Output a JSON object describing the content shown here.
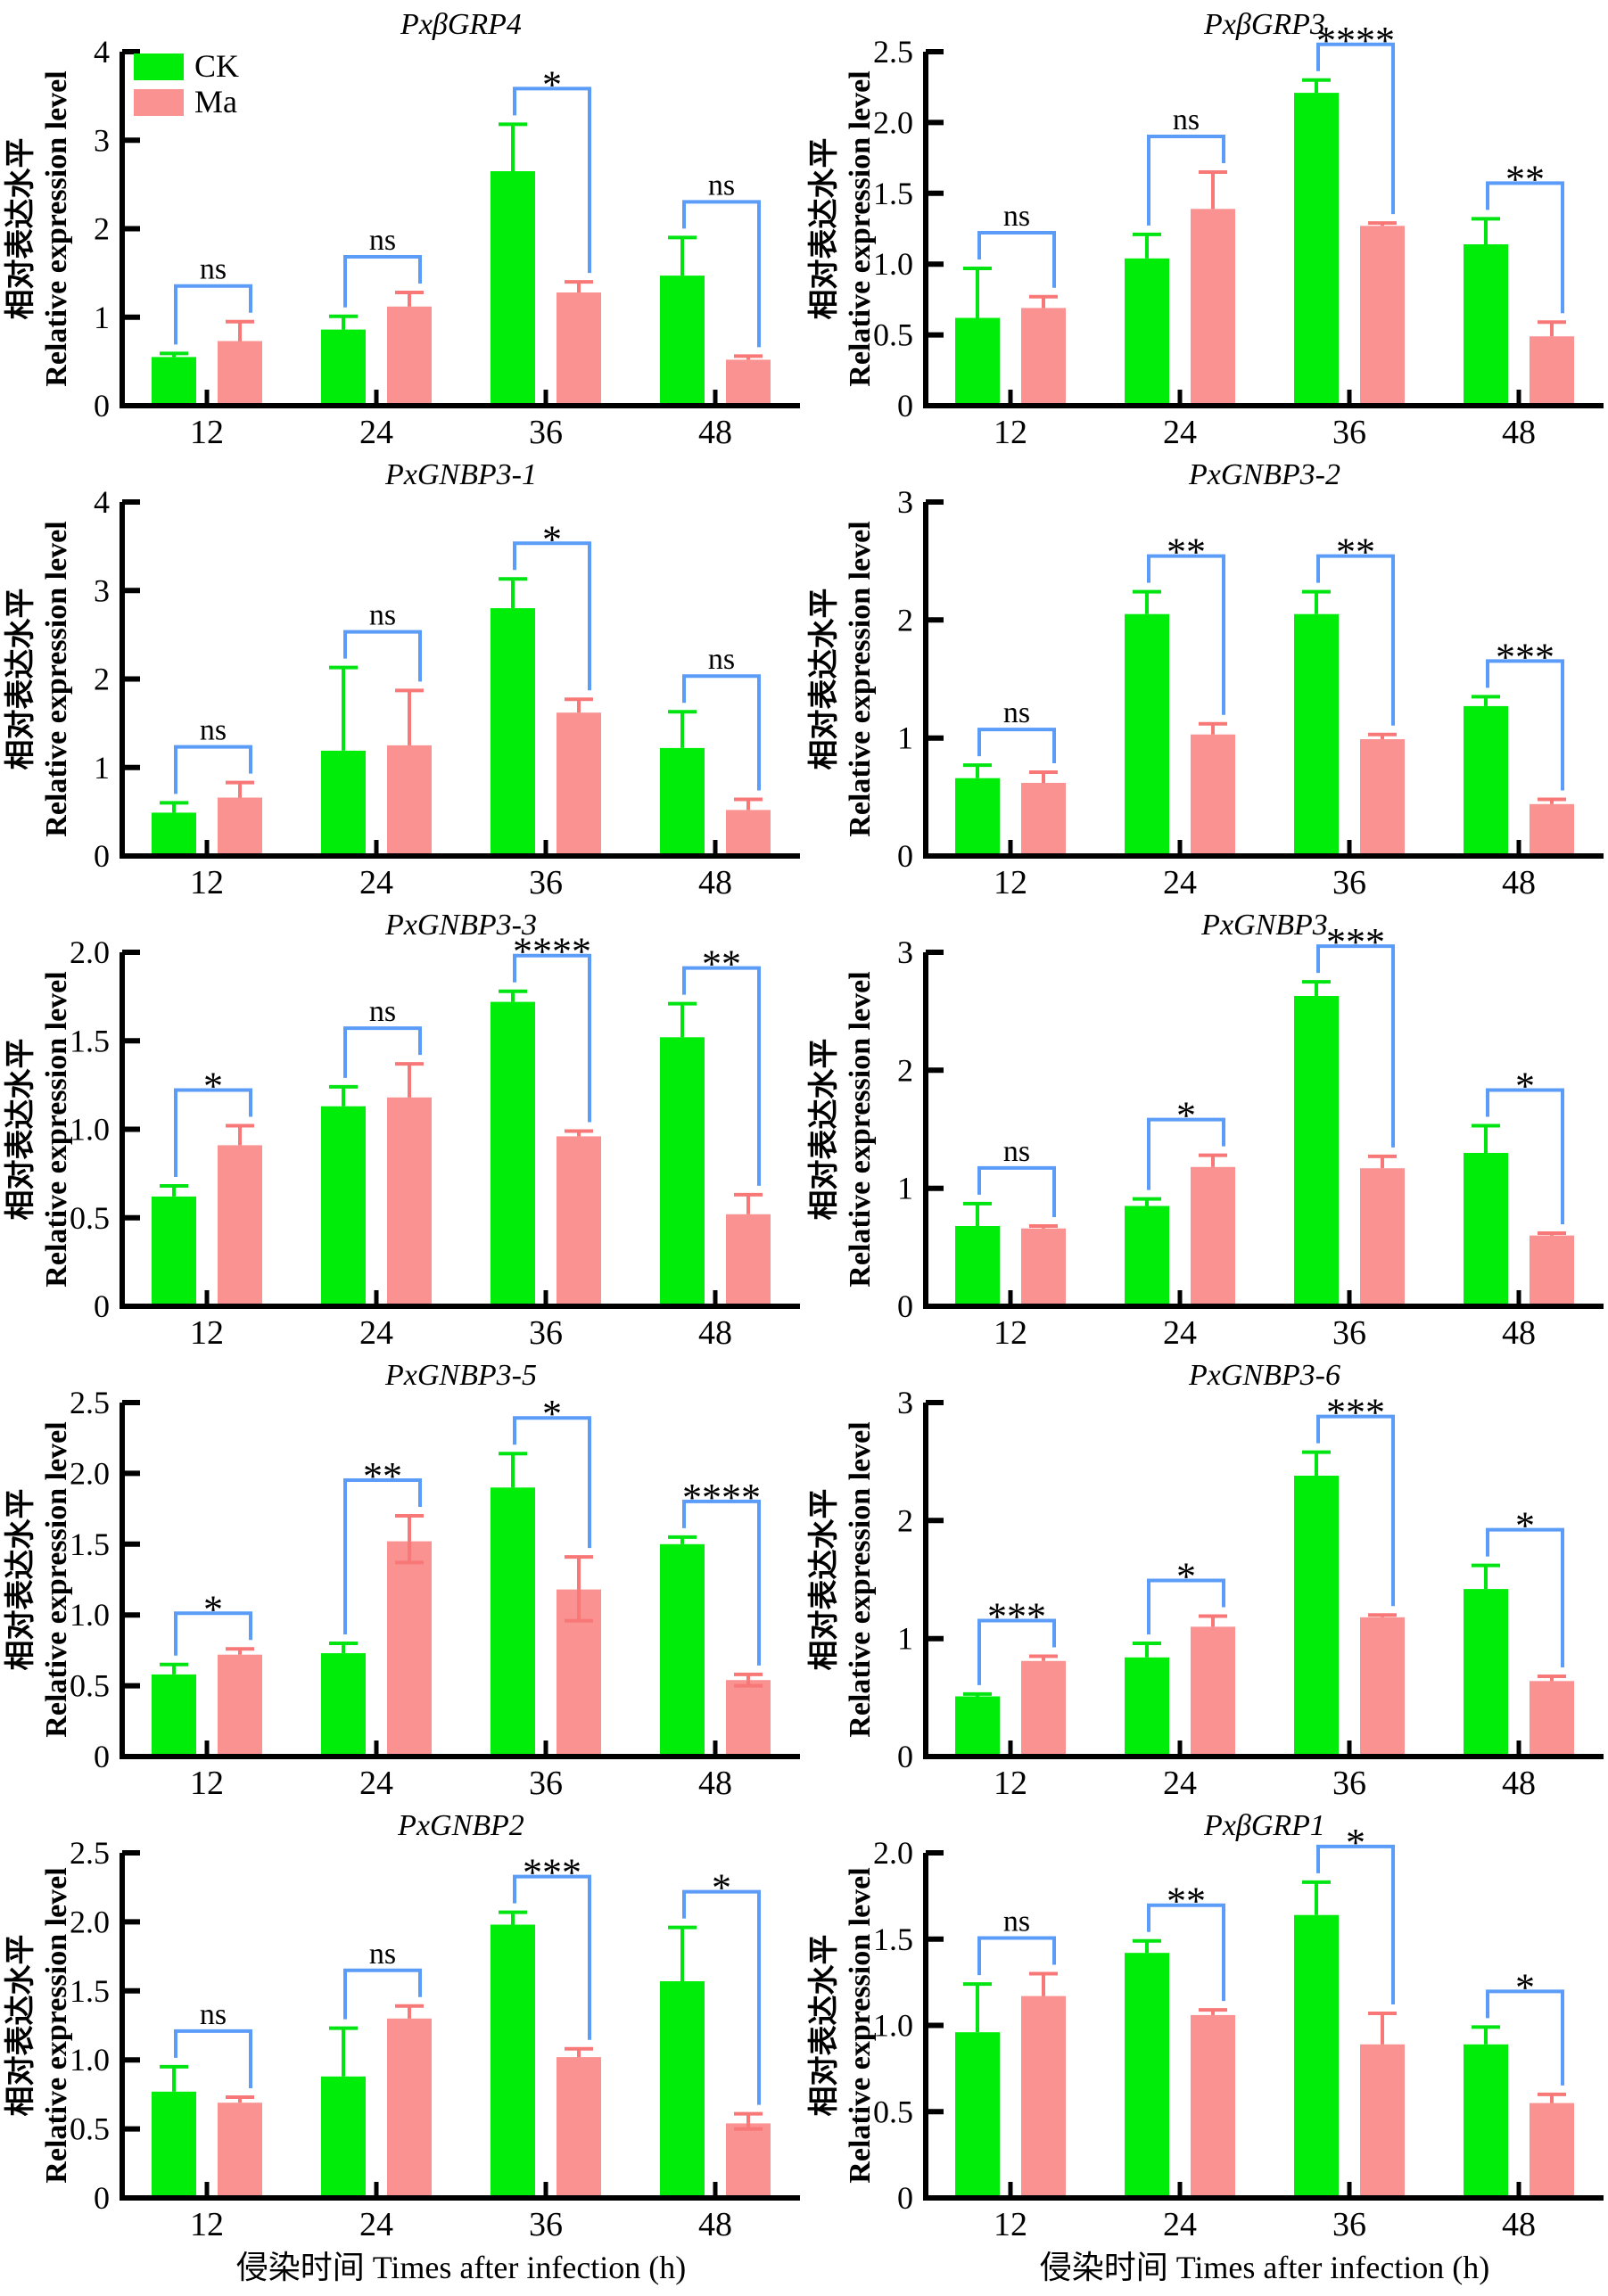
{
  "figure": {
    "xlabel": "侵染时间 Times after infection (h)",
    "ylabel_line1": "相对表达水平",
    "ylabel_line2": "Relative expression level",
    "categories": [
      "12",
      "24",
      "36",
      "48"
    ],
    "legend": {
      "items": [
        {
          "label": "CK",
          "color": "#00ED0A"
        },
        {
          "label": "Ma",
          "color": "#FA9292"
        }
      ],
      "position": "top-left-first-chart"
    },
    "colors": {
      "ck_bar": "#00ED0A",
      "ck_error": "#00E511",
      "ma_bar": "#FA9292",
      "ma_error": "#F87878",
      "bracket": "#5B9CF8",
      "axis": "#000000",
      "text": "#000000"
    }
  },
  "chart_data": [
    {
      "type": "bar",
      "title": "PxβGRP4",
      "ylim": [
        0,
        4
      ],
      "yticks": [
        "0",
        "1",
        "2",
        "3",
        "4"
      ],
      "categories": [
        "12",
        "24",
        "36",
        "48"
      ],
      "significance": [
        "ns",
        "ns",
        "*",
        "ns"
      ],
      "show_legend": true,
      "show_xlabel": false,
      "series": [
        {
          "name": "CK",
          "values": [
            0.55,
            0.86,
            2.65,
            1.47
          ],
          "errors": [
            0.04,
            0.15,
            0.53,
            0.43
          ]
        },
        {
          "name": "Ma",
          "values": [
            0.73,
            1.12,
            1.28,
            0.52
          ],
          "errors": [
            0.22,
            0.16,
            0.12,
            0.04
          ]
        }
      ]
    },
    {
      "type": "bar",
      "title": "PxβGRP3",
      "ylim": [
        0,
        2.5
      ],
      "yticks": [
        "0",
        "0.5",
        "1.0",
        "1.5",
        "2.0",
        "2.5"
      ],
      "categories": [
        "12",
        "24",
        "36",
        "48"
      ],
      "significance": [
        "ns",
        "ns",
        "****",
        "**"
      ],
      "show_legend": false,
      "show_xlabel": false,
      "series": [
        {
          "name": "CK",
          "values": [
            0.62,
            1.04,
            2.21,
            1.14
          ],
          "errors": [
            0.35,
            0.17,
            0.09,
            0.18
          ]
        },
        {
          "name": "Ma",
          "values": [
            0.69,
            1.39,
            1.27,
            0.49
          ],
          "errors": [
            0.08,
            0.26,
            0.02,
            0.1
          ]
        }
      ]
    },
    {
      "type": "bar",
      "title": "PxGNBP3-1",
      "ylim": [
        0,
        4
      ],
      "yticks": [
        "0",
        "1",
        "2",
        "3",
        "4"
      ],
      "categories": [
        "12",
        "24",
        "36",
        "48"
      ],
      "significance": [
        "ns",
        "ns",
        "*",
        "ns"
      ],
      "show_legend": false,
      "show_xlabel": false,
      "series": [
        {
          "name": "CK",
          "values": [
            0.49,
            1.19,
            2.8,
            1.22
          ],
          "errors": [
            0.11,
            0.94,
            0.33,
            0.41
          ]
        },
        {
          "name": "Ma",
          "values": [
            0.66,
            1.25,
            1.62,
            0.52
          ],
          "errors": [
            0.17,
            0.62,
            0.15,
            0.12
          ]
        }
      ]
    },
    {
      "type": "bar",
      "title": "PxGNBP3-2",
      "ylim": [
        0,
        3
      ],
      "yticks": [
        "0",
        "1",
        "2",
        "3"
      ],
      "categories": [
        "12",
        "24",
        "36",
        "48"
      ],
      "significance": [
        "ns",
        "**",
        "**",
        "***"
      ],
      "show_legend": false,
      "show_xlabel": false,
      "series": [
        {
          "name": "CK",
          "values": [
            0.66,
            2.05,
            2.05,
            1.27
          ],
          "errors": [
            0.11,
            0.19,
            0.19,
            0.08
          ]
        },
        {
          "name": "Ma",
          "values": [
            0.62,
            1.03,
            0.99,
            0.44
          ],
          "errors": [
            0.09,
            0.09,
            0.04,
            0.04
          ]
        }
      ]
    },
    {
      "type": "bar",
      "title": "PxGNBP3-3",
      "ylim": [
        0,
        2.0
      ],
      "yticks": [
        "0",
        "0.5",
        "1.0",
        "1.5",
        "2.0"
      ],
      "categories": [
        "12",
        "24",
        "36",
        "48"
      ],
      "significance": [
        "*",
        "ns",
        "****",
        "**"
      ],
      "show_legend": false,
      "show_xlabel": false,
      "series": [
        {
          "name": "CK",
          "values": [
            0.62,
            1.13,
            1.72,
            1.52
          ],
          "errors": [
            0.06,
            0.11,
            0.06,
            0.19
          ]
        },
        {
          "name": "Ma",
          "values": [
            0.91,
            1.18,
            0.96,
            0.52
          ],
          "errors": [
            0.11,
            0.19,
            0.03,
            0.11
          ]
        }
      ]
    },
    {
      "type": "bar",
      "title": "PxGNBP3",
      "ylim": [
        0,
        3
      ],
      "yticks": [
        "0",
        "1",
        "2",
        "3"
      ],
      "categories": [
        "12",
        "24",
        "36",
        "48"
      ],
      "significance": [
        "ns",
        "*",
        "***",
        "*"
      ],
      "show_legend": false,
      "show_xlabel": false,
      "series": [
        {
          "name": "CK",
          "values": [
            0.68,
            0.85,
            2.63,
            1.3
          ],
          "errors": [
            0.19,
            0.06,
            0.12,
            0.23
          ]
        },
        {
          "name": "Ma",
          "values": [
            0.66,
            1.18,
            1.17,
            0.6
          ],
          "errors": [
            0.02,
            0.1,
            0.1,
            0.02
          ]
        }
      ]
    },
    {
      "type": "bar",
      "title": "PxGNBP3-5",
      "ylim": [
        0,
        2.5
      ],
      "yticks": [
        "0",
        "0.5",
        "1.0",
        "1.5",
        "2.0",
        "2.5"
      ],
      "categories": [
        "12",
        "24",
        "36",
        "48"
      ],
      "significance": [
        "*",
        "**",
        "*",
        "****"
      ],
      "show_legend": false,
      "show_xlabel": false,
      "series": [
        {
          "name": "CK",
          "values": [
            0.58,
            0.73,
            1.9,
            1.5
          ],
          "errors": [
            0.07,
            0.07,
            0.24,
            0.05
          ]
        },
        {
          "name": "Ma",
          "values": [
            0.72,
            1.52,
            1.18,
            0.54
          ],
          "errors": [
            0.04,
            0.18,
            0.23,
            0.04
          ],
          "errors_down": [
            0,
            0.15,
            0.22,
            0.04
          ]
        }
      ]
    },
    {
      "type": "bar",
      "title": "PxGNBP3-6",
      "ylim": [
        0,
        3
      ],
      "yticks": [
        "0",
        "1",
        "2",
        "3"
      ],
      "categories": [
        "12",
        "24",
        "36",
        "48"
      ],
      "significance": [
        "***",
        "*",
        "***",
        "*"
      ],
      "show_legend": false,
      "show_xlabel": false,
      "series": [
        {
          "name": "CK",
          "values": [
            0.51,
            0.84,
            2.38,
            1.42
          ],
          "errors": [
            0.02,
            0.12,
            0.2,
            0.2
          ]
        },
        {
          "name": "Ma",
          "values": [
            0.81,
            1.1,
            1.18,
            0.64
          ],
          "errors": [
            0.04,
            0.09,
            0.02,
            0.04
          ]
        }
      ]
    },
    {
      "type": "bar",
      "title": "PxGNBP2",
      "ylim": [
        0,
        2.5
      ],
      "yticks": [
        "0",
        "0.5",
        "1.0",
        "1.5",
        "2.0",
        "2.5"
      ],
      "categories": [
        "12",
        "24",
        "36",
        "48"
      ],
      "significance": [
        "ns",
        "ns",
        "***",
        "*"
      ],
      "show_legend": false,
      "show_xlabel": true,
      "series": [
        {
          "name": "CK",
          "values": [
            0.77,
            0.88,
            1.98,
            1.57
          ],
          "errors": [
            0.18,
            0.35,
            0.09,
            0.39
          ]
        },
        {
          "name": "Ma",
          "values": [
            0.69,
            1.3,
            1.02,
            0.54
          ],
          "errors": [
            0.04,
            0.09,
            0.06,
            0.07
          ],
          "errors_down": [
            0,
            0,
            0,
            0.04
          ]
        }
      ]
    },
    {
      "type": "bar",
      "title": "PxβGRP1",
      "ylim": [
        0,
        2.0
      ],
      "yticks": [
        "0",
        "0.5",
        "1.0",
        "1.5",
        "2.0"
      ],
      "categories": [
        "12",
        "24",
        "36",
        "48"
      ],
      "significance": [
        "ns",
        "**",
        "*",
        "*"
      ],
      "show_legend": false,
      "show_xlabel": true,
      "series": [
        {
          "name": "CK",
          "values": [
            0.96,
            1.42,
            1.64,
            0.89
          ],
          "errors": [
            0.28,
            0.07,
            0.19,
            0.1
          ]
        },
        {
          "name": "Ma",
          "values": [
            1.17,
            1.06,
            0.89,
            0.55
          ],
          "errors": [
            0.13,
            0.03,
            0.18,
            0.05
          ]
        }
      ]
    }
  ]
}
